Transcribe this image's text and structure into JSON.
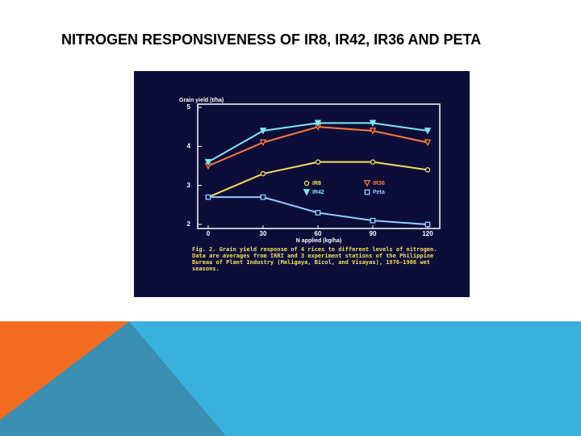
{
  "slide_title": "NITROGEN RESPONSIVENESS OF IR8, IR42, IR36 AND PETA",
  "chart_data": {
    "type": "line",
    "y_label": "Grain yield (t/ha)",
    "x_label": "N applied (kg/ha)",
    "caption": "Fig. 2. Grain yield response of 4 rices to different levels of nitrogen. Data are averages from IRRI and 3 experiment stations of the Philippine Bureau of Plant Industry (Maligaya, Bicol, and Visayas), 1976-1986 wet seasons.",
    "x": [
      0,
      30,
      60,
      90,
      120
    ],
    "xlim": [
      0,
      120
    ],
    "xticks": [
      0,
      30,
      60,
      90,
      120
    ],
    "ylim": [
      2,
      5
    ],
    "yticks": [
      2,
      3,
      4,
      5
    ],
    "series": [
      {
        "name": "IR8",
        "color": "#f5e05a",
        "marker": "circle",
        "values": [
          2.7,
          3.3,
          3.6,
          3.6,
          3.4
        ]
      },
      {
        "name": "IR36",
        "color": "#ff7a3a",
        "marker": "triangle-open",
        "values": [
          3.5,
          4.1,
          4.5,
          4.4,
          4.1
        ]
      },
      {
        "name": "IR42",
        "color": "#7fe8f0",
        "marker": "triangle-filled",
        "values": [
          3.6,
          4.4,
          4.6,
          4.6,
          4.4
        ]
      },
      {
        "name": "Peta",
        "color": "#8fd0ff",
        "marker": "square",
        "values": [
          2.7,
          2.7,
          2.3,
          2.1,
          2.0
        ]
      }
    ]
  }
}
